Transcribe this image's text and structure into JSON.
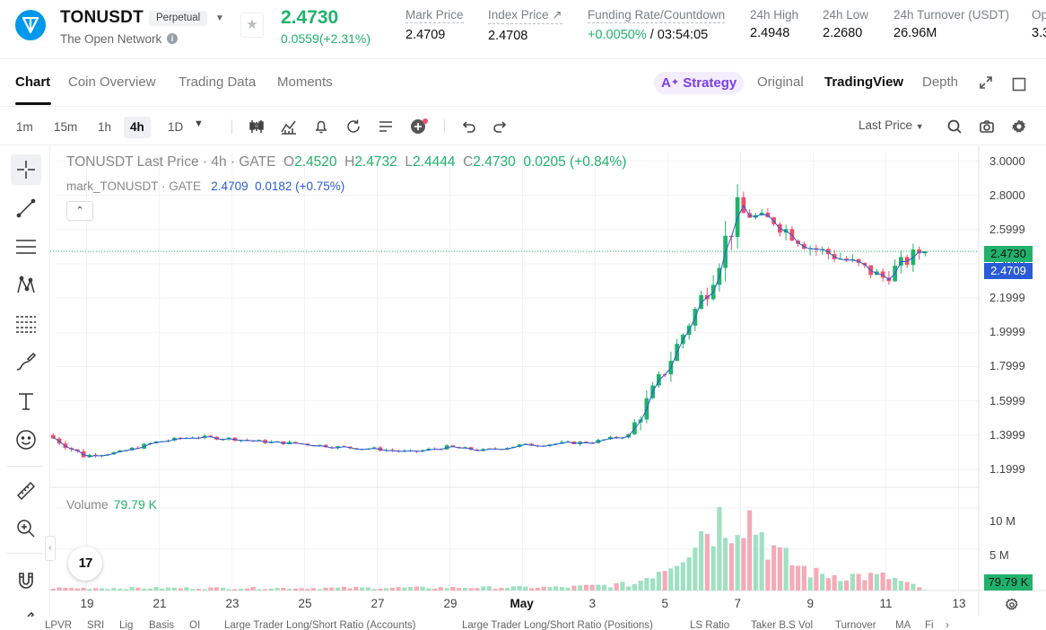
{
  "header": {
    "symbol": "TONUSDT",
    "contract_type": "Perpetual",
    "subtitle": "The Open Network",
    "last_price": "2.4730",
    "change": "0.0559(+2.31%)",
    "stats": [
      {
        "label": "Mark Price",
        "value": "2.4709"
      },
      {
        "label": "Index Price ↗",
        "value": "2.4708"
      },
      {
        "label": "Funding Rate/Countdown",
        "value_green": "+0.0050%",
        "value": " / 03:54:05"
      },
      {
        "label": "24h High",
        "value": "2.4948"
      },
      {
        "label": "24h Low",
        "value": "2.2680"
      },
      {
        "label": "24h Turnover (USDT)",
        "value": "26.96M"
      },
      {
        "label": "Op",
        "value": "3.3"
      }
    ]
  },
  "tabs": [
    "Chart",
    "Coin Overview",
    "Trading Data",
    "Moments"
  ],
  "views": {
    "strategy": "Strategy",
    "items": [
      "Original",
      "TradingView",
      "Depth"
    ]
  },
  "toolbar": {
    "timeframes": [
      "1m",
      "15m",
      "1h",
      "4h",
      "1D"
    ],
    "active_timeframe": "4h",
    "price_type": "Last Price"
  },
  "legend": {
    "main_title": "TONUSDT Last Price · 4h · GATE",
    "o_label": "O",
    "o": "2.4520",
    "h_label": "H",
    "h": "2.4732",
    "l_label": "L",
    "l": "2.4444",
    "c_label": "C",
    "c": "2.4730",
    "chg": "0.0205 (+0.84%)",
    "mark_title": "mark_TONUSDT · GATE",
    "mark_value": "2.4709",
    "mark_chg": "0.0182 (+0.75%)",
    "volume_label": "Volume",
    "volume_value": "79.79 K",
    "collapse": "⌃",
    "tv_logo": "17"
  },
  "axes": {
    "price_ticks": [
      "3.0000",
      "2.8000",
      "2.5999",
      "2.3999",
      "2.1999",
      "1.9999",
      "1.7999",
      "1.5999",
      "1.3999",
      "1.1999"
    ],
    "volume_ticks": [
      "10 M",
      "5 M"
    ],
    "date_ticks": [
      "19",
      "21",
      "23",
      "25",
      "27",
      "29",
      "May",
      "3",
      "5",
      "7",
      "9",
      "11",
      "13"
    ],
    "last_price_tag": "2.4730",
    "mark_price_tag": "2.4709",
    "volume_tag": "79.79 K"
  },
  "bottom_indicators": [
    "LPVR",
    "SRI",
    "Lig",
    "Basis",
    "OI",
    "Large Trader Long/Short Ratio (Accounts)",
    "Large Trader Long/Short Ratio (Positions)",
    "LS Ratio",
    "Taker B.S Vol",
    "Turnover",
    "MA",
    "Fi"
  ],
  "colors": {
    "up": "#20b26c",
    "down": "#ef4f6b",
    "mark": "#2a5bd7",
    "accent": "#7b3fe4"
  },
  "chart_data": {
    "type": "candlestick",
    "interval": "4h",
    "ylim": [
      1.1,
      3.05
    ],
    "anchor_points_close": [
      [
        "Apr 18",
        1.4
      ],
      [
        "Apr 19",
        1.28
      ],
      [
        "Apr 20",
        1.3
      ],
      [
        "Apr 21",
        1.36
      ],
      [
        "Apr 22",
        1.39
      ],
      [
        "Apr 23",
        1.38
      ],
      [
        "Apr 24",
        1.36
      ],
      [
        "Apr 25",
        1.35
      ],
      [
        "Apr 26",
        1.33
      ],
      [
        "Apr 27",
        1.32
      ],
      [
        "Apr 28",
        1.3
      ],
      [
        "Apr 29",
        1.33
      ],
      [
        "Apr 30",
        1.31
      ],
      [
        "May 1",
        1.34
      ],
      [
        "May 2",
        1.35
      ],
      [
        "May 3",
        1.36
      ],
      [
        "May 4",
        1.4
      ],
      [
        "May 5",
        1.78
      ],
      [
        "May 6",
        2.2
      ],
      [
        "May 7",
        2.7
      ],
      [
        "May 8",
        2.65
      ],
      [
        "May 9",
        2.5
      ],
      [
        "May 10",
        2.42
      ],
      [
        "May 11",
        2.32
      ],
      [
        "May 12",
        2.47
      ]
    ],
    "volume_ylim": [
      0,
      12.5
    ],
    "volume_daily_M": [
      [
        "Apr 18",
        0.3
      ],
      [
        "Apr 25",
        0.3
      ],
      [
        "May 2",
        0.4
      ],
      [
        "May 4",
        0.8
      ],
      [
        "May 5",
        3.5
      ],
      [
        "May 6",
        8.0
      ],
      [
        "May 7",
        10.0
      ],
      [
        "May 8",
        4.0
      ],
      [
        "May 9",
        2.0
      ],
      [
        "May 10",
        1.8
      ],
      [
        "May 11",
        1.6
      ],
      [
        "May 12",
        0.08
      ]
    ]
  }
}
